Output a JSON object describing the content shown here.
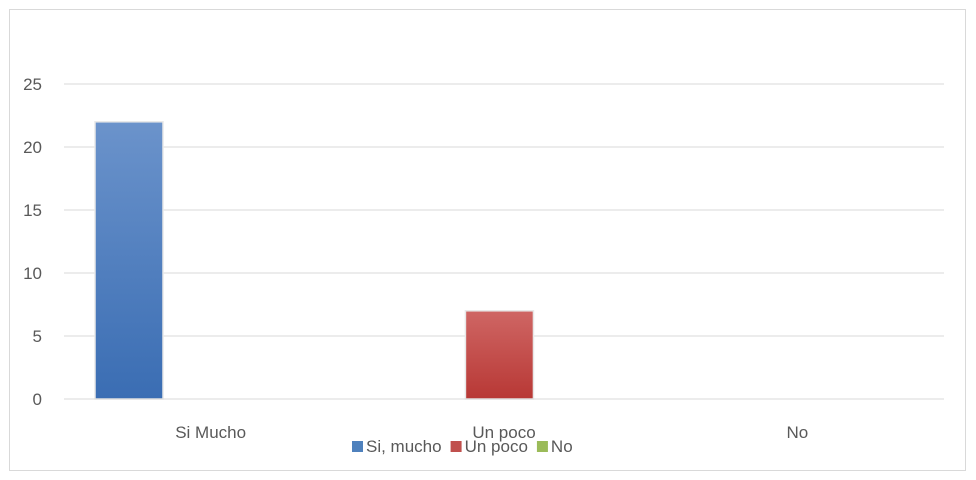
{
  "chart_data": {
    "type": "bar",
    "categories": [
      "Si Mucho",
      "Un poco",
      "No"
    ],
    "series": [
      {
        "name": "Si, mucho",
        "values": [
          22,
          0,
          0
        ],
        "color": "#4f81bd"
      },
      {
        "name": "Un poco",
        "values": [
          0,
          7,
          0
        ],
        "color": "#c0504d"
      },
      {
        "name": "No",
        "values": [
          0,
          0,
          0
        ],
        "color": "#9bbb59"
      }
    ],
    "yticks": [
      0,
      5,
      10,
      15,
      20,
      25
    ],
    "ylim": [
      0,
      27.5
    ],
    "grid": true,
    "legend_position": "bottom"
  }
}
